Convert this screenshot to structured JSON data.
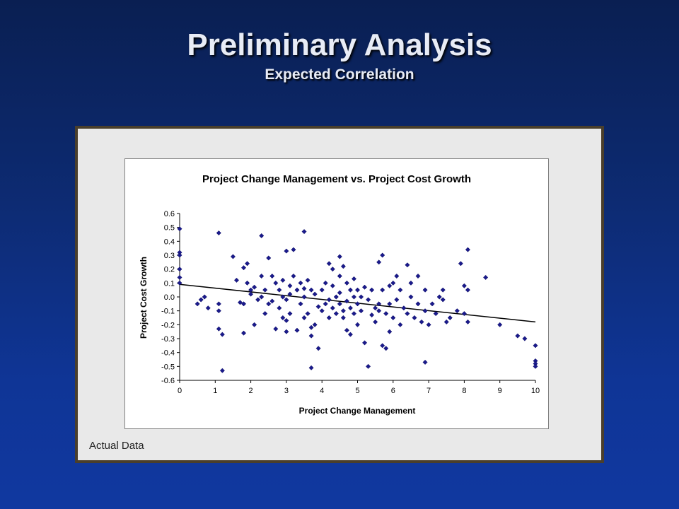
{
  "slide": {
    "title": "Preliminary Analysis",
    "subtitle": "Expected Correlation",
    "caption": "Actual Data"
  },
  "colors": {
    "background": "#0d2b73",
    "frame_border": "#4a3f2c",
    "marker": "#1a1a8c",
    "trendline": "#000000"
  },
  "chart_data": {
    "type": "scatter",
    "title": "Project Change Management vs. Project Cost Growth",
    "xlabel": "Project Change Management",
    "ylabel": "Project Cost Growth",
    "xlim": [
      0,
      10
    ],
    "ylim": [
      -0.6,
      0.6
    ],
    "x_ticks": [
      "0",
      "1",
      "2",
      "3",
      "4",
      "5",
      "6",
      "7",
      "8",
      "9",
      "10"
    ],
    "y_ticks": [
      "0.6",
      "0.5",
      "0.4",
      "0.3",
      "0.2",
      "0.1",
      "0.0",
      "-0.1",
      "-0.2",
      "-0.3",
      "-0.4",
      "-0.5",
      "-0.6"
    ],
    "grid": false,
    "legend": "none",
    "trendline": {
      "x": [
        0,
        10
      ],
      "y": [
        0.09,
        -0.18
      ]
    },
    "points": [
      [
        0,
        0.49
      ],
      [
        0,
        0.32
      ],
      [
        0,
        0.3
      ],
      [
        0,
        0.2
      ],
      [
        0,
        0.14
      ],
      [
        0,
        0.1
      ],
      [
        0.5,
        -0.05
      ],
      [
        0.6,
        -0.02
      ],
      [
        0.7,
        0.0
      ],
      [
        0.8,
        -0.08
      ],
      [
        1.1,
        0.46
      ],
      [
        1.1,
        -0.1
      ],
      [
        1.1,
        -0.23
      ],
      [
        1.2,
        -0.27
      ],
      [
        1.2,
        -0.53
      ],
      [
        1.1,
        -0.05
      ],
      [
        1.5,
        0.29
      ],
      [
        1.6,
        0.12
      ],
      [
        1.7,
        -0.04
      ],
      [
        1.8,
        -0.05
      ],
      [
        1.8,
        -0.26
      ],
      [
        1.8,
        0.21
      ],
      [
        1.9,
        0.24
      ],
      [
        1.9,
        0.1
      ],
      [
        2.0,
        0.02
      ],
      [
        2.0,
        0.05
      ],
      [
        2.1,
        -0.2
      ],
      [
        2.1,
        0.07
      ],
      [
        2.2,
        -0.02
      ],
      [
        2.3,
        0.0
      ],
      [
        2.3,
        0.15
      ],
      [
        2.3,
        0.44
      ],
      [
        2.4,
        -0.12
      ],
      [
        2.4,
        0.05
      ],
      [
        2.5,
        -0.05
      ],
      [
        2.5,
        0.28
      ],
      [
        2.6,
        0.15
      ],
      [
        2.6,
        -0.03
      ],
      [
        2.7,
        0.1
      ],
      [
        2.7,
        -0.23
      ],
      [
        2.8,
        0.05
      ],
      [
        2.8,
        -0.08
      ],
      [
        2.9,
        -0.15
      ],
      [
        2.9,
        0.0
      ],
      [
        2.9,
        0.12
      ],
      [
        3.0,
        -0.02
      ],
      [
        3.0,
        -0.17
      ],
      [
        3.0,
        0.33
      ],
      [
        3.0,
        -0.25
      ],
      [
        3.1,
        0.08
      ],
      [
        3.1,
        0.02
      ],
      [
        3.1,
        -0.12
      ],
      [
        3.2,
        0.34
      ],
      [
        3.2,
        0.15
      ],
      [
        3.3,
        0.05
      ],
      [
        3.3,
        -0.24
      ],
      [
        3.4,
        0.1
      ],
      [
        3.4,
        -0.05
      ],
      [
        3.5,
        0.47
      ],
      [
        3.5,
        0.06
      ],
      [
        3.5,
        0.0
      ],
      [
        3.5,
        -0.15
      ],
      [
        3.6,
        0.12
      ],
      [
        3.6,
        -0.12
      ],
      [
        3.7,
        -0.22
      ],
      [
        3.7,
        -0.28
      ],
      [
        3.7,
        -0.51
      ],
      [
        3.7,
        0.05
      ],
      [
        3.8,
        -0.2
      ],
      [
        3.8,
        0.02
      ],
      [
        3.9,
        -0.07
      ],
      [
        3.9,
        -0.37
      ],
      [
        4.0,
        0.05
      ],
      [
        4.0,
        -0.1
      ],
      [
        4.1,
        -0.05
      ],
      [
        4.1,
        0.1
      ],
      [
        4.2,
        0.24
      ],
      [
        4.2,
        -0.02
      ],
      [
        4.2,
        -0.15
      ],
      [
        4.3,
        0.2
      ],
      [
        4.3,
        0.08
      ],
      [
        4.3,
        -0.08
      ],
      [
        4.4,
        0.0
      ],
      [
        4.4,
        -0.12
      ],
      [
        4.5,
        0.29
      ],
      [
        4.5,
        0.15
      ],
      [
        4.5,
        0.03
      ],
      [
        4.5,
        -0.05
      ],
      [
        4.6,
        0.22
      ],
      [
        4.6,
        -0.1
      ],
      [
        4.6,
        -0.15
      ],
      [
        4.7,
        0.1
      ],
      [
        4.7,
        -0.03
      ],
      [
        4.7,
        -0.24
      ],
      [
        4.8,
        0.05
      ],
      [
        4.8,
        -0.08
      ],
      [
        4.8,
        -0.27
      ],
      [
        4.9,
        0.13
      ],
      [
        4.9,
        0.0
      ],
      [
        4.9,
        -0.12
      ],
      [
        5.0,
        0.05
      ],
      [
        5.0,
        -0.05
      ],
      [
        5.0,
        -0.2
      ],
      [
        5.1,
        0.0
      ],
      [
        5.1,
        -0.1
      ],
      [
        5.2,
        -0.33
      ],
      [
        5.2,
        0.07
      ],
      [
        5.3,
        -0.5
      ],
      [
        5.3,
        -0.02
      ],
      [
        5.4,
        -0.13
      ],
      [
        5.4,
        0.05
      ],
      [
        5.5,
        -0.08
      ],
      [
        5.5,
        -0.18
      ],
      [
        5.6,
        0.25
      ],
      [
        5.6,
        -0.05
      ],
      [
        5.6,
        -0.1
      ],
      [
        5.7,
        0.3
      ],
      [
        5.7,
        -0.35
      ],
      [
        5.7,
        0.05
      ],
      [
        5.8,
        -0.37
      ],
      [
        5.8,
        -0.12
      ],
      [
        5.9,
        0.08
      ],
      [
        5.9,
        -0.25
      ],
      [
        5.9,
        -0.05
      ],
      [
        6.0,
        0.1
      ],
      [
        6.0,
        -0.15
      ],
      [
        6.1,
        -0.02
      ],
      [
        6.1,
        0.15
      ],
      [
        6.2,
        0.05
      ],
      [
        6.2,
        -0.2
      ],
      [
        6.3,
        -0.08
      ],
      [
        6.4,
        0.23
      ],
      [
        6.4,
        -0.12
      ],
      [
        6.5,
        0.1
      ],
      [
        6.5,
        0.0
      ],
      [
        6.6,
        -0.15
      ],
      [
        6.7,
        0.15
      ],
      [
        6.7,
        -0.05
      ],
      [
        6.8,
        -0.18
      ],
      [
        6.9,
        0.05
      ],
      [
        6.9,
        -0.47
      ],
      [
        6.9,
        -0.1
      ],
      [
        7.0,
        -0.2
      ],
      [
        7.1,
        -0.05
      ],
      [
        7.2,
        -0.12
      ],
      [
        7.3,
        0.0
      ],
      [
        7.4,
        -0.02
      ],
      [
        7.4,
        0.05
      ],
      [
        7.5,
        -0.18
      ],
      [
        7.6,
        -0.15
      ],
      [
        7.8,
        -0.1
      ],
      [
        7.9,
        0.24
      ],
      [
        8.0,
        0.08
      ],
      [
        8.0,
        -0.12
      ],
      [
        8.1,
        0.05
      ],
      [
        8.1,
        0.34
      ],
      [
        8.1,
        -0.18
      ],
      [
        8.6,
        0.14
      ],
      [
        9.0,
        -0.2
      ],
      [
        9.5,
        -0.28
      ],
      [
        9.7,
        -0.3
      ],
      [
        10.0,
        -0.35
      ],
      [
        10.0,
        -0.46
      ],
      [
        10.0,
        -0.48
      ],
      [
        10.0,
        -0.5
      ]
    ]
  }
}
